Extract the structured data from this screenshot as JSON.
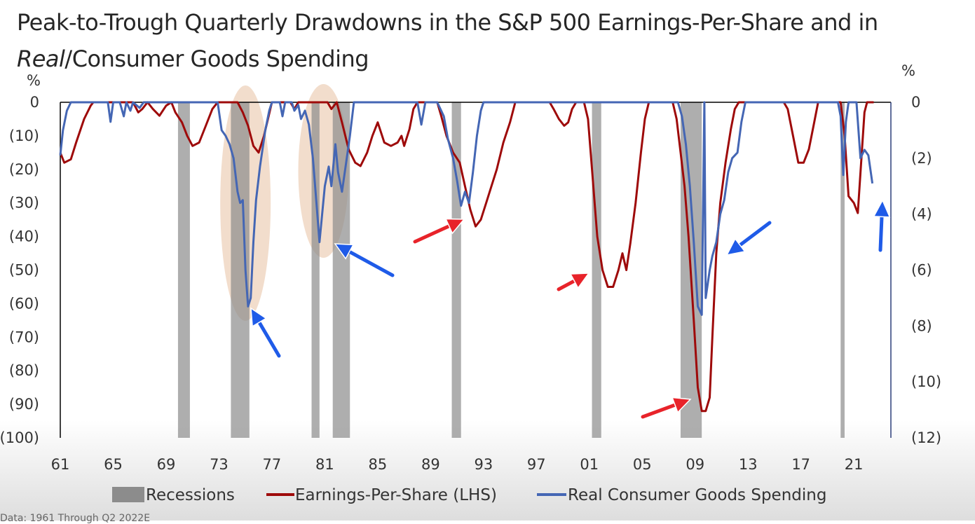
{
  "page": {
    "footer_note": "Data: 1961 Through Q2 2022E"
  },
  "chart_data": {
    "type": "line",
    "title_line1": "Peak-to-Trough Quarterly Drawdowns in the S&P 500 Earnings-Per-Share and in",
    "title_italic": "Real",
    "title_rest": "Consumer Goods Spending",
    "left_axis": {
      "unit": "%",
      "min": -100,
      "max": 0,
      "ticks": [
        0,
        -10,
        -20,
        -30,
        -40,
        -50,
        -60,
        -70,
        -80,
        -90,
        -100
      ],
      "tick_labels": [
        "0",
        "(10)",
        "(20)",
        "(30)",
        "(40)",
        "(50)",
        "(60)",
        "(70)",
        "(80)",
        "(90)",
        "(100)"
      ]
    },
    "right_axis": {
      "unit": "%",
      "min": -12,
      "max": 0,
      "ticks": [
        0,
        -2,
        -4,
        -6,
        -8,
        -10,
        -12
      ],
      "tick_labels": [
        "0",
        "(2)",
        "(4)",
        "(6)",
        "(8)",
        "(10)",
        "(12)"
      ]
    },
    "x_axis": {
      "min": 1961,
      "max": 2023.8,
      "ticks": [
        1961,
        1965,
        1969,
        1973,
        1977,
        1981,
        1985,
        1989,
        1993,
        1997,
        2001,
        2005,
        2009,
        2013,
        2017,
        2021
      ],
      "tick_labels": [
        "61",
        "65",
        "69",
        "73",
        "77",
        "81",
        "85",
        "89",
        "93",
        "97",
        "01",
        "05",
        "09",
        "13",
        "17",
        "21"
      ]
    },
    "recessions": [
      [
        1969.9,
        1970.8
      ],
      [
        1973.9,
        1975.3
      ],
      [
        1980.0,
        1980.6
      ],
      [
        1981.6,
        1982.9
      ],
      [
        1990.6,
        1991.3
      ],
      [
        2001.2,
        2001.9
      ],
      [
        2007.9,
        2009.5
      ],
      [
        2020.0,
        2020.3
      ]
    ],
    "series": [
      {
        "name": "Earnings-Per-Share (LHS)",
        "axis": "left",
        "color": "#9e0a0a",
        "points": [
          [
            1961,
            -15
          ],
          [
            1961.3,
            -18
          ],
          [
            1961.8,
            -17
          ],
          [
            1962.2,
            -12
          ],
          [
            1962.8,
            -5
          ],
          [
            1963.3,
            -1
          ],
          [
            1963.5,
            0
          ],
          [
            1966.5,
            0
          ],
          [
            1966.9,
            -3
          ],
          [
            1967.2,
            -2
          ],
          [
            1967.6,
            0
          ],
          [
            1968,
            -2
          ],
          [
            1968.5,
            -4
          ],
          [
            1969,
            -1
          ],
          [
            1969.4,
            0
          ],
          [
            1969.7,
            -3
          ],
          [
            1970.2,
            -6
          ],
          [
            1970.6,
            -10
          ],
          [
            1971,
            -13
          ],
          [
            1971.5,
            -12
          ],
          [
            1972,
            -7
          ],
          [
            1972.5,
            -2
          ],
          [
            1972.9,
            0
          ],
          [
            1974.4,
            0
          ],
          [
            1974.8,
            -3
          ],
          [
            1975.2,
            -7
          ],
          [
            1975.6,
            -13
          ],
          [
            1976,
            -15
          ],
          [
            1976.4,
            -10
          ],
          [
            1976.7,
            -5
          ],
          [
            1977,
            0
          ],
          [
            1978.4,
            0
          ],
          [
            1978.7,
            -2
          ],
          [
            1979,
            0
          ],
          [
            1981.2,
            0
          ],
          [
            1981.5,
            -2
          ],
          [
            1981.9,
            0
          ],
          [
            1982.3,
            -6
          ],
          [
            1982.8,
            -14
          ],
          [
            1983.3,
            -18
          ],
          [
            1983.7,
            -19
          ],
          [
            1984.2,
            -15
          ],
          [
            1984.6,
            -10
          ],
          [
            1985,
            -6
          ],
          [
            1985.5,
            -12
          ],
          [
            1986,
            -13
          ],
          [
            1986.5,
            -12
          ],
          [
            1986.8,
            -10
          ],
          [
            1987,
            -13
          ],
          [
            1987.4,
            -8
          ],
          [
            1987.7,
            -2
          ],
          [
            1988,
            0
          ],
          [
            1989.5,
            0
          ],
          [
            1989.8,
            -4
          ],
          [
            1990.2,
            -10
          ],
          [
            1990.7,
            -15
          ],
          [
            1991.2,
            -18
          ],
          [
            1991.6,
            -25
          ],
          [
            1992,
            -32
          ],
          [
            1992.4,
            -37
          ],
          [
            1992.8,
            -35
          ],
          [
            1993.2,
            -30
          ],
          [
            1993.6,
            -25
          ],
          [
            1994,
            -20
          ],
          [
            1994.5,
            -12
          ],
          [
            1995,
            -6
          ],
          [
            1995.4,
            0
          ],
          [
            1998,
            0
          ],
          [
            1998.3,
            -2
          ],
          [
            1998.7,
            -5
          ],
          [
            1999.1,
            -7
          ],
          [
            1999.4,
            -6
          ],
          [
            1999.7,
            -2
          ],
          [
            2000,
            0
          ],
          [
            2000.6,
            0
          ],
          [
            2000.9,
            -5
          ],
          [
            2001.2,
            -20
          ],
          [
            2001.6,
            -40
          ],
          [
            2002,
            -50
          ],
          [
            2002.4,
            -55
          ],
          [
            2002.8,
            -55
          ],
          [
            2003.2,
            -50
          ],
          [
            2003.5,
            -45
          ],
          [
            2003.8,
            -50
          ],
          [
            2004.1,
            -42
          ],
          [
            2004.5,
            -30
          ],
          [
            2004.9,
            -15
          ],
          [
            2005.2,
            -5
          ],
          [
            2005.5,
            0
          ],
          [
            2007.3,
            0
          ],
          [
            2007.6,
            -5
          ],
          [
            2007.9,
            -15
          ],
          [
            2008.2,
            -25
          ],
          [
            2008.5,
            -40
          ],
          [
            2008.9,
            -65
          ],
          [
            2009.2,
            -85
          ],
          [
            2009.5,
            -92
          ],
          [
            2009.8,
            -92
          ],
          [
            2010.1,
            -88
          ],
          [
            2010.3,
            -70
          ],
          [
            2010.6,
            -45
          ],
          [
            2010.9,
            -30
          ],
          [
            2011.3,
            -18
          ],
          [
            2011.7,
            -8
          ],
          [
            2012,
            -2
          ],
          [
            2012.3,
            0
          ],
          [
            2015.7,
            0
          ],
          [
            2016,
            -2
          ],
          [
            2016.4,
            -10
          ],
          [
            2016.8,
            -18
          ],
          [
            2017.2,
            -18
          ],
          [
            2017.6,
            -14
          ],
          [
            2018,
            -6
          ],
          [
            2018.3,
            0
          ],
          [
            2020,
            0
          ],
          [
            2020.3,
            -10
          ],
          [
            2020.6,
            -28
          ],
          [
            2021,
            -30
          ],
          [
            2021.3,
            -33
          ],
          [
            2021.6,
            -15
          ],
          [
            2021.8,
            -3
          ],
          [
            2022,
            0
          ],
          [
            2022.5,
            0
          ]
        ]
      },
      {
        "name": "Real Consumer Goods Spending",
        "axis": "right",
        "color": "#4466b4",
        "points": [
          [
            1961,
            -1.9
          ],
          [
            1961.2,
            -1
          ],
          [
            1961.5,
            -0.3
          ],
          [
            1961.8,
            0
          ],
          [
            1964.6,
            0
          ],
          [
            1964.8,
            -0.7
          ],
          [
            1965,
            0
          ],
          [
            1965.5,
            0
          ],
          [
            1965.8,
            -0.5
          ],
          [
            1966,
            0
          ],
          [
            1966.3,
            -0.3
          ],
          [
            1966.5,
            0
          ],
          [
            1967,
            -0.2
          ],
          [
            1967.3,
            0
          ],
          [
            1972.6,
            0
          ],
          [
            1972.9,
            0
          ],
          [
            1973.2,
            -1
          ],
          [
            1973.5,
            -1.2
          ],
          [
            1973.8,
            -1.5
          ],
          [
            1974.1,
            -2
          ],
          [
            1974.4,
            -3.2
          ],
          [
            1974.6,
            -3.6
          ],
          [
            1974.8,
            -3.5
          ],
          [
            1975,
            -6
          ],
          [
            1975.2,
            -7.3
          ],
          [
            1975.4,
            -7
          ],
          [
            1975.6,
            -5
          ],
          [
            1975.8,
            -3.5
          ],
          [
            1976.1,
            -2.3
          ],
          [
            1976.5,
            -1
          ],
          [
            1976.8,
            -0.3
          ],
          [
            1977,
            0
          ],
          [
            1977.6,
            0
          ],
          [
            1977.8,
            -0.5
          ],
          [
            1978,
            0
          ],
          [
            1978.5,
            0
          ],
          [
            1978.7,
            -0.3
          ],
          [
            1979,
            -0.1
          ],
          [
            1979.2,
            -0.6
          ],
          [
            1979.5,
            -0.3
          ],
          [
            1979.8,
            -0.8
          ],
          [
            1980.1,
            -2
          ],
          [
            1980.4,
            -3.8
          ],
          [
            1980.6,
            -5
          ],
          [
            1980.8,
            -4
          ],
          [
            1981,
            -3
          ],
          [
            1981.3,
            -2.3
          ],
          [
            1981.5,
            -3
          ],
          [
            1981.8,
            -1.5
          ],
          [
            1982,
            -2.5
          ],
          [
            1982.3,
            -3.2
          ],
          [
            1982.6,
            -2.2
          ],
          [
            1982.9,
            -1.2
          ],
          [
            1983.2,
            0
          ],
          [
            1988,
            0
          ],
          [
            1988.3,
            -0.8
          ],
          [
            1988.6,
            0
          ],
          [
            1989.5,
            0
          ],
          [
            1990,
            -0.5
          ],
          [
            1990.3,
            -1.3
          ],
          [
            1990.7,
            -2
          ],
          [
            1991,
            -2.8
          ],
          [
            1991.3,
            -3.7
          ],
          [
            1991.6,
            -3.2
          ],
          [
            1991.9,
            -3.6
          ],
          [
            1992.2,
            -2.5
          ],
          [
            1992.5,
            -1.2
          ],
          [
            1992.8,
            -0.3
          ],
          [
            1993,
            0
          ],
          [
            2009.7,
            0
          ],
          [
            2007.7,
            0
          ],
          [
            2008,
            -0.5
          ],
          [
            2008.3,
            -1.5
          ],
          [
            2008.6,
            -3
          ],
          [
            2008.9,
            -5
          ],
          [
            2009.2,
            -7.3
          ],
          [
            2009.5,
            -7.6
          ],
          [
            2009.8,
            -7
          ],
          [
            2010.1,
            -6
          ],
          [
            2010.3,
            -5.5
          ],
          [
            2010.6,
            -5
          ],
          [
            2010.9,
            -4
          ],
          [
            2011.2,
            -3.5
          ],
          [
            2011.5,
            -2.5
          ],
          [
            2011.8,
            -2
          ],
          [
            2012.2,
            -1.8
          ],
          [
            2012.5,
            -0.7
          ],
          [
            2012.8,
            0
          ],
          [
            2019.8,
            0
          ],
          [
            2020,
            -0.5
          ],
          [
            2020.2,
            -2.6
          ],
          [
            2020.4,
            -0.7
          ],
          [
            2020.6,
            0
          ],
          [
            2021.2,
            0
          ],
          [
            2021.5,
            -2
          ],
          [
            2021.8,
            -1.7
          ],
          [
            2022.1,
            -1.9
          ],
          [
            2022.4,
            -2.9
          ]
        ]
      }
    ],
    "legend": [
      "Recessions",
      "Earnings-Per-Share (LHS)",
      "Real Consumer Goods Spending"
    ],
    "annotations": {
      "highlight_ellipses": [
        "mid-1970s drawdown",
        "early-1980s drawdown"
      ],
      "arrows": [
        "blue: 1975 trough",
        "blue: 1980 trough",
        "red: 1992 EPS trough",
        "red: 2001 EPS trough",
        "red: 2009 EPS trough",
        "blue: 2009 spending trough",
        "blue: 2022 spending"
      ]
    }
  }
}
